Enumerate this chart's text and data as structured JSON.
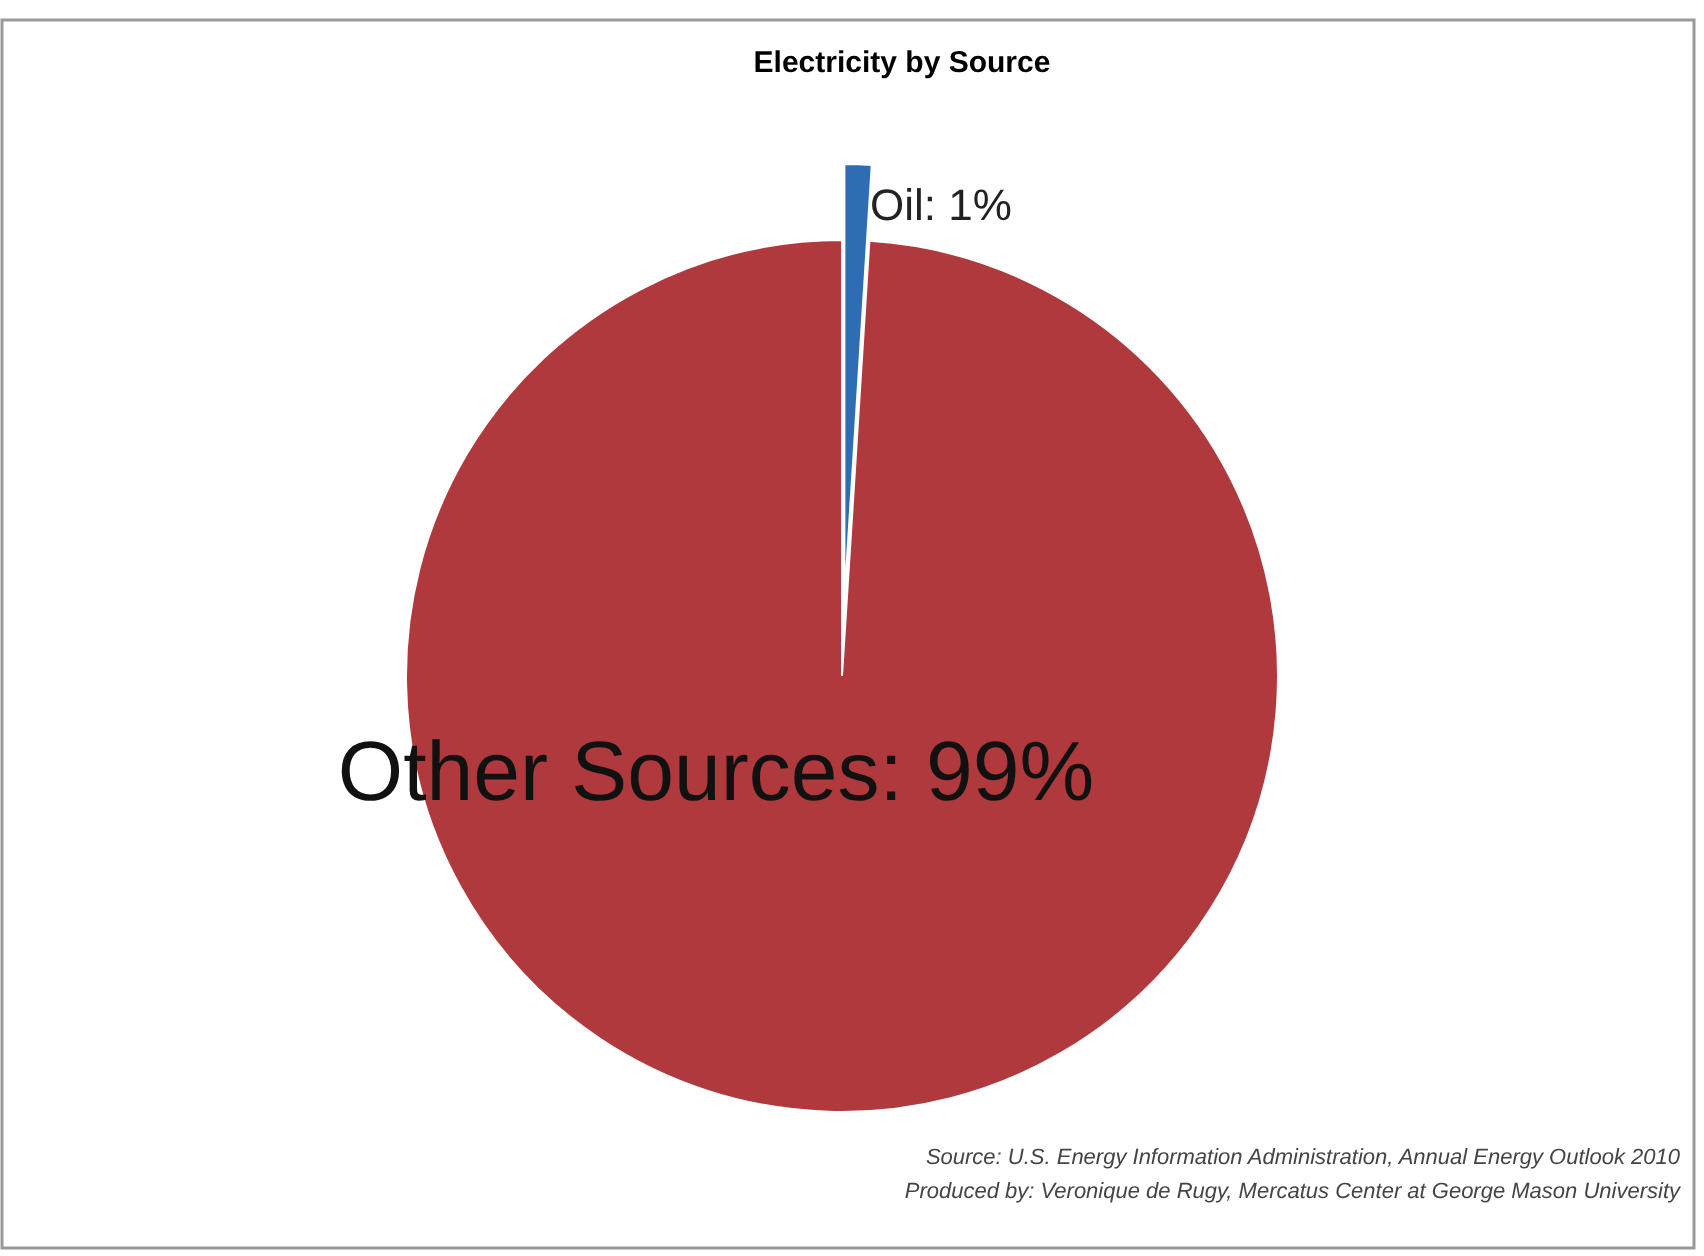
{
  "chart_data": {
    "type": "pie",
    "title": "Electricity by Source",
    "categories": [
      "Oil",
      "Other Sources"
    ],
    "values": [
      1,
      99
    ],
    "colors": [
      "#2e6db4",
      "#b0393d"
    ],
    "value_labels": [
      "1%",
      "99%"
    ],
    "annotations": [
      "Source: U.S. Energy Information Administration, Annual  Energy Outlook 2010",
      "Produced by: Veronique de Rugy, Mercatus Center at George Mason University"
    ]
  }
}
